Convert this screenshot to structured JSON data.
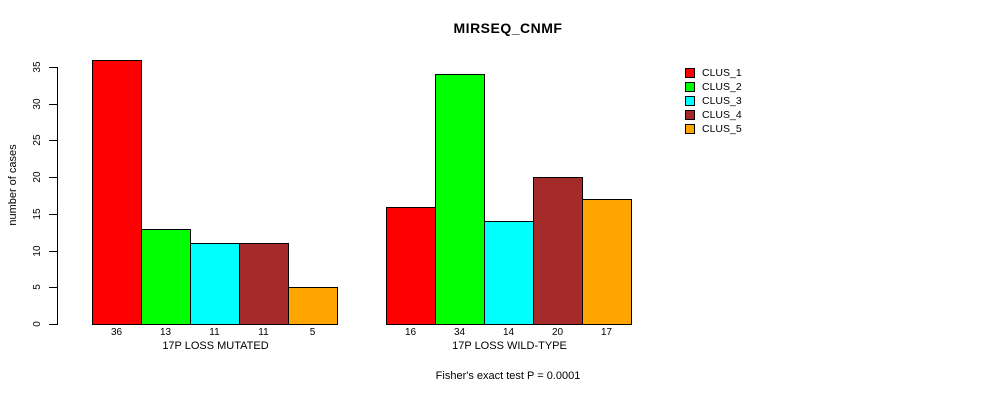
{
  "title": "MIRSEQ_CNMF",
  "colors": {
    "background": "#FFFFFF",
    "axis": "#000000",
    "text": "#000000",
    "clus_1": "#FF0000",
    "clus_2": "#00FF00",
    "clus_3": "#00FFFF",
    "clus_4": "#A52A2A",
    "clus_5": "#FFA500"
  },
  "chart_data": {
    "type": "bar",
    "title": "MIRSEQ_CNMF",
    "xlabel": "",
    "ylabel": "number of cases",
    "ylim": [
      0,
      36
    ],
    "yticks": [
      0,
      5,
      10,
      15,
      20,
      25,
      30,
      35
    ],
    "grid": false,
    "legend_position": "right",
    "categories": [
      "17P LOSS MUTATED",
      "17P LOSS WILD-TYPE"
    ],
    "series": [
      {
        "name": "CLUS_1",
        "color": "#FF0000",
        "values": [
          36,
          16
        ]
      },
      {
        "name": "CLUS_2",
        "color": "#00FF00",
        "values": [
          13,
          34
        ]
      },
      {
        "name": "CLUS_3",
        "color": "#00FFFF",
        "values": [
          11,
          14
        ]
      },
      {
        "name": "CLUS_4",
        "color": "#A52A2A",
        "values": [
          11,
          20
        ]
      },
      {
        "name": "CLUS_5",
        "color": "#FFA500",
        "values": [
          5,
          17
        ]
      }
    ],
    "bar_value_labels": [
      [
        36,
        13,
        11,
        11,
        5
      ],
      [
        16,
        34,
        14,
        20,
        17
      ]
    ],
    "annotation": "Fisher's exact test P = 0.0001"
  }
}
